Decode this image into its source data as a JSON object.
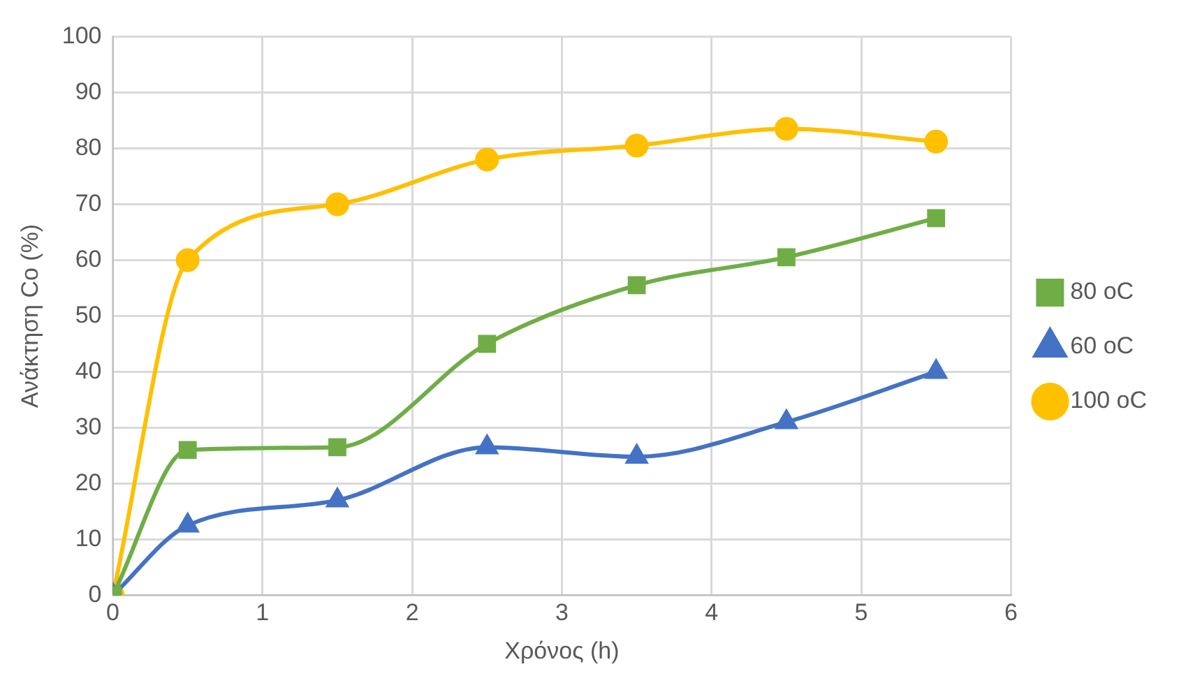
{
  "chart_data": {
    "type": "line",
    "xlabel": "Χρόνος (h)",
    "ylabel": "Ανάκτηση Co (%)",
    "x": [
      0,
      0.5,
      1.5,
      2.5,
      3.5,
      4.5,
      5.5
    ],
    "series": [
      {
        "name": "80 oC",
        "color": "#70ad47",
        "marker": "square",
        "values": [
          0,
          26,
          26.5,
          45,
          55.5,
          60.5,
          67.5
        ]
      },
      {
        "name": "60 oC",
        "color": "#4472c4",
        "marker": "triangle",
        "values": [
          0,
          12.5,
          17,
          26.5,
          24.8,
          31,
          40
        ]
      },
      {
        "name": "100 oC",
        "color": "#ffc000",
        "marker": "circle",
        "values": [
          0,
          60,
          70,
          78,
          80.5,
          83.5,
          81.2
        ]
      }
    ],
    "xlim": [
      0,
      6
    ],
    "xticks": [
      0,
      1,
      2,
      3,
      4,
      5,
      6
    ],
    "ylim": [
      0,
      100
    ],
    "yticks": [
      0,
      10,
      20,
      30,
      40,
      50,
      60,
      70,
      80,
      90,
      100
    ],
    "grid": true,
    "legend": "right",
    "line_style": "solid"
  }
}
